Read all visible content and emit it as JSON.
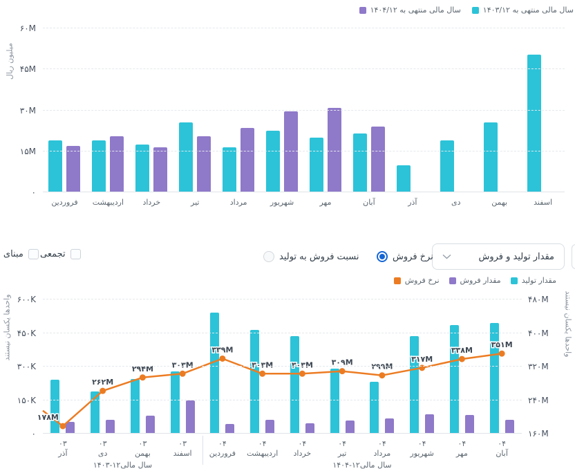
{
  "controls": {
    "dataset_select": {
      "value": "مقدار تولید و فروش",
      "chevron_icon": "chevron-down"
    },
    "radio_options": [
      {
        "label": "نسبت فروش به تولید",
        "selected": false
      },
      {
        "label": "نرخ فروش",
        "selected": true
      }
    ],
    "checkboxes": [
      {
        "label": "تجمعی",
        "checked": false
      },
      {
        "label": "مبنای صفر",
        "checked": false
      }
    ]
  },
  "colors": {
    "teal": "#2cc3d8",
    "purple": "#8f79c9",
    "orange": "#ec7c23",
    "radio_blue": "#1566d6"
  },
  "chart_data": [
    {
      "name": "yearly-comparison",
      "type": "bar",
      "categories": [
        "فروردین",
        "اردیبهشت",
        "خرداد",
        "تیر",
        "مرداد",
        "شهریور",
        "مهر",
        "آبان",
        "آذر",
        "دی",
        "بهمن",
        "اسفند"
      ],
      "series": [
        {
          "name": "سال مالی منتهی به ۱۴۰۳/۱۲",
          "color": "#2cc3d8",
          "values": [
            19,
            19,
            17.5,
            25.5,
            16.5,
            22.5,
            20,
            21.5,
            10,
            19,
            25.5,
            50.5
          ]
        },
        {
          "name": "سال مالی منتهی به ۱۴۰۴/۱۲",
          "color": "#8f79c9",
          "values": [
            17,
            20.5,
            16.5,
            20.5,
            23.5,
            29.5,
            31,
            24,
            null,
            null,
            null,
            null
          ]
        }
      ],
      "legend": [
        {
          "label": "سال مالی منتهی به ۱۴۰۴/۱۲",
          "color": "#8f79c9"
        },
        {
          "label": "سال مالی منتهی به ۱۴۰۳/۱۲",
          "color": "#2cc3d8"
        }
      ],
      "ylabel": "میلیون ریال",
      "unit": "M (میلیون ریال)",
      "ylim": [
        0,
        60
      ],
      "grid": true,
      "legend_position": "top-right",
      "yticks": [
        {
          "v": 0,
          "label": "۰"
        },
        {
          "v": 15,
          "label": "۱۵M"
        },
        {
          "v": 30,
          "label": "۳۰M"
        },
        {
          "v": 45,
          "label": "۴۵M"
        },
        {
          "v": 60,
          "label": "۶۰M"
        }
      ]
    },
    {
      "name": "production-and-sales",
      "type": "bar+line",
      "categories": [
        "آذر",
        "دی",
        "بهمن",
        "اسفند",
        "فروردین",
        "اردیبهشت",
        "خرداد",
        "تیر",
        "مرداد",
        "شهریور",
        "مهر",
        "آبان"
      ],
      "category_year_digits": [
        "۰۳",
        "۰۳",
        "۰۳",
        "۰۳",
        "۰۴",
        "۰۴",
        "۰۴",
        "۰۴",
        "۰۴",
        "۰۴",
        "۰۴",
        "۰۴"
      ],
      "year_groups": [
        {
          "label": "سال مالی۱۲-۱۴۰۳",
          "from": 0,
          "to": 3
        },
        {
          "label": "سال مالی۱۲-۱۴۰۴",
          "from": 4,
          "to": 11
        }
      ],
      "legend": [
        {
          "label": "نرخ فروش",
          "color": "#ec7c23"
        },
        {
          "label": "مقدار فروش",
          "color": "#8f79c9"
        },
        {
          "label": "مقدار تولید",
          "color": "#2cc3d8"
        }
      ],
      "bar_series": [
        {
          "name": "مقدار تولید",
          "color": "#2cc3d8",
          "axis": "left",
          "values": [
            240,
            190,
            245,
            277,
            540,
            463,
            437,
            291,
            232,
            437,
            485,
            494
          ]
        },
        {
          "name": "مقدار فروش",
          "color": "#8f79c9",
          "axis": "left",
          "values": [
            52,
            63,
            82,
            147,
            42,
            61,
            45,
            58,
            68,
            87,
            84,
            61
          ]
        }
      ],
      "line_series": {
        "name": "نرخ فروش",
        "color": "#ec7c23",
        "axis": "right",
        "values": [
          178,
          262,
          294,
          303,
          339,
          303,
          303,
          309,
          299,
          317,
          338,
          351
        ],
        "labels": [
          "۱۷۸M",
          "۲۶۲M",
          "۲۹۴M",
          "۳۰۳M",
          "۳۳۹M",
          "۳۰۳M",
          "۳۰۳M",
          "۳۰۹M",
          "۲۹۹M",
          "۳۱۷M",
          "۳۳۸M",
          "۳۵۱M"
        ],
        "lead_in_value": 215
      },
      "left_axis": {
        "title": "واحدها یکسان نیستند",
        "unit": "K",
        "lim": [
          0,
          600
        ],
        "ticks": [
          {
            "v": 0,
            "label": "۰"
          },
          {
            "v": 150,
            "label": "۱۵۰K"
          },
          {
            "v": 300,
            "label": "۳۰۰K"
          },
          {
            "v": 450,
            "label": "۴۵۰K"
          },
          {
            "v": 600,
            "label": "۶۰۰K"
          }
        ]
      },
      "right_axis": {
        "title": "واحدها یکسان نیستند",
        "unit": "M",
        "lim": [
          160,
          480
        ],
        "ticks": [
          {
            "v": 160,
            "label": "۱۶۰M"
          },
          {
            "v": 240,
            "label": "۲۴۰M"
          },
          {
            "v": 320,
            "label": "۳۲۰M"
          },
          {
            "v": 400,
            "label": "۴۰۰M"
          },
          {
            "v": 480,
            "label": "۴۸۰M"
          }
        ]
      }
    }
  ]
}
